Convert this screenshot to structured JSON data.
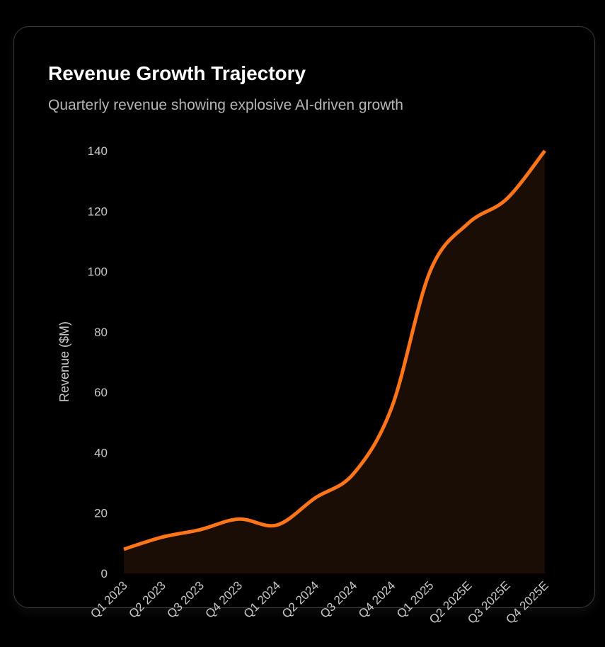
{
  "title": "Revenue Growth Trajectory",
  "subtitle": "Quarterly revenue showing explosive AI-driven growth",
  "chart_data": {
    "type": "area",
    "title": "Revenue Growth Trajectory",
    "subtitle": "Quarterly revenue showing explosive AI-driven growth",
    "xlabel": "",
    "ylabel": "Revenue ($M)",
    "categories": [
      "Q1 2023",
      "Q2 2023",
      "Q3 2023",
      "Q4 2023",
      "Q1 2024",
      "Q2 2024",
      "Q3 2024",
      "Q4 2024",
      "Q1 2025",
      "Q2 2025E",
      "Q3 2025E",
      "Q4 2025E"
    ],
    "series": [
      {
        "name": "Revenue",
        "values": [
          8,
          12,
          14.5,
          18,
          16,
          25,
          33,
          55,
          100,
          116,
          124,
          140
        ]
      }
    ],
    "ylim": [
      0,
      140
    ],
    "yticks": [
      0,
      20,
      40,
      60,
      80,
      100,
      120,
      140
    ],
    "grid": false,
    "colors": {
      "line": "#ff7518",
      "fill": "#1a0d05",
      "text": "#c8c8c8"
    }
  }
}
